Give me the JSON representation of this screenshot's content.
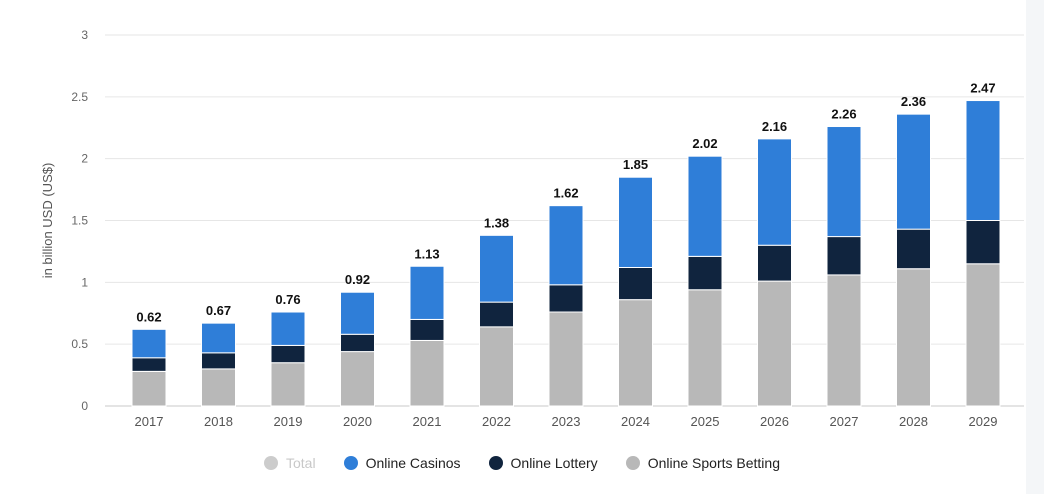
{
  "chart_data": {
    "type": "bar",
    "stacked": true,
    "categories": [
      "2017",
      "2018",
      "2019",
      "2020",
      "2021",
      "2022",
      "2023",
      "2024",
      "2025",
      "2026",
      "2027",
      "2028",
      "2029"
    ],
    "series": [
      {
        "name": "Online Sports Betting",
        "color": "#b8b8b8",
        "values": [
          0.28,
          0.3,
          0.35,
          0.44,
          0.53,
          0.64,
          0.76,
          0.86,
          0.94,
          1.01,
          1.06,
          1.11,
          1.15
        ]
      },
      {
        "name": "Online Lottery",
        "color": "#10243e",
        "values": [
          0.11,
          0.13,
          0.14,
          0.14,
          0.17,
          0.2,
          0.22,
          0.26,
          0.27,
          0.29,
          0.31,
          0.32,
          0.35
        ]
      },
      {
        "name": "Online Casinos",
        "color": "#2f7ed8",
        "values": [
          0.23,
          0.24,
          0.27,
          0.34,
          0.43,
          0.54,
          0.64,
          0.73,
          0.81,
          0.86,
          0.89,
          0.93,
          0.97
        ]
      }
    ],
    "totals": [
      0.62,
      0.67,
      0.76,
      0.92,
      1.13,
      1.38,
      1.62,
      1.85,
      2.02,
      2.16,
      2.26,
      2.36,
      2.47
    ],
    "total_labels": [
      "0.62",
      "0.67",
      "0.76",
      "0.92",
      "1.13",
      "1.38",
      "1.62",
      "1.85",
      "2.02",
      "2.16",
      "2.26",
      "2.36",
      "2.47"
    ],
    "ylabel": "in billion USD (US$)",
    "ylim": [
      0,
      3
    ],
    "yticks": [
      0,
      0.5,
      1,
      1.5,
      2,
      2.5,
      3
    ],
    "ytick_labels": [
      "0",
      "0.5",
      "1",
      "1.5",
      "2",
      "2.5",
      "3"
    ],
    "grid": true,
    "legend_position": "bottom-center"
  },
  "legend": [
    {
      "label": "Total",
      "color": "#cccccc",
      "disabled": true
    },
    {
      "label": "Online Casinos",
      "color": "#2f7ed8",
      "disabled": false
    },
    {
      "label": "Online Lottery",
      "color": "#10243e",
      "disabled": false
    },
    {
      "label": "Online Sports Betting",
      "color": "#b8b8b8",
      "disabled": false
    }
  ]
}
